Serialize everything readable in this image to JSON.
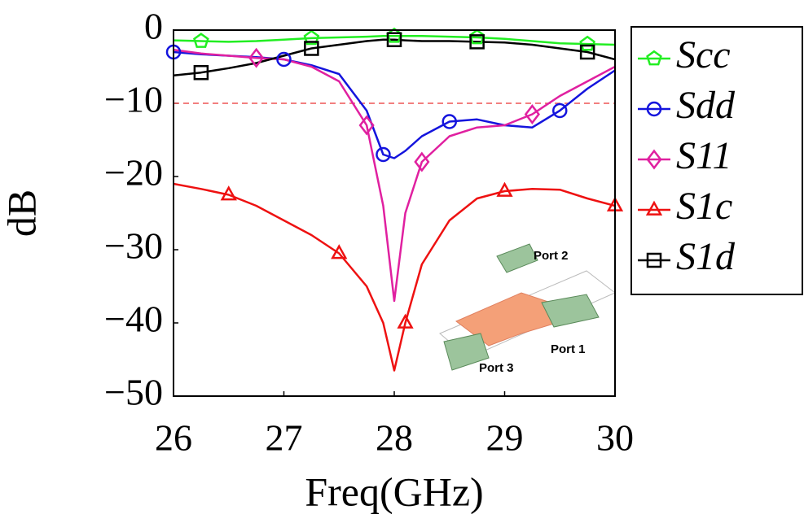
{
  "chart_data": {
    "type": "line",
    "xlabel": "Freq(GHz)",
    "ylabel": "dB",
    "xlim": [
      26,
      30
    ],
    "xticks": [
      26,
      27,
      28,
      29,
      30
    ],
    "ylim": [
      -50,
      0
    ],
    "yticks": [
      {
        "value": -50,
        "label": "−50"
      },
      {
        "value": -40,
        "label": "−40"
      },
      {
        "value": -30,
        "label": "−30"
      },
      {
        "value": -20,
        "label": "−20"
      },
      {
        "value": -10,
        "label": "−10"
      },
      0
    ],
    "reference_line": {
      "value": -10,
      "color": "#ee5555"
    },
    "legend": "outside-right",
    "x": [
      26,
      26.25,
      26.5,
      26.75,
      27,
      27.25,
      27.5,
      27.75,
      27.9,
      28,
      28.1,
      28.25,
      28.5,
      28.75,
      29,
      29.25,
      29.5,
      29.75,
      30
    ],
    "series": [
      {
        "name": "Scc",
        "color": "#22ee22",
        "marker": "pentagon",
        "values": [
          -1.4,
          -1.5,
          -1.6,
          -1.5,
          -1.3,
          -1.1,
          -1.0,
          -0.9,
          -0.8,
          -0.8,
          -0.8,
          -0.8,
          -0.9,
          -1.0,
          -1.2,
          -1.5,
          -1.8,
          -1.9,
          -2.0
        ]
      },
      {
        "name": "Sdd",
        "color": "#1414dd",
        "marker": "circle",
        "values": [
          -3,
          -3.3,
          -3.5,
          -3.7,
          -4,
          -4.8,
          -6,
          -11,
          -17,
          -17.5,
          -16.5,
          -14.5,
          -12.5,
          -12.2,
          -13,
          -13.3,
          -11,
          -8,
          -5.5
        ]
      },
      {
        "name": "S11",
        "color": "#e020a0",
        "marker": "diamond",
        "values": [
          -2.7,
          -3.2,
          -3.5,
          -3.8,
          -4,
          -5,
          -7,
          -13,
          -24,
          -37,
          -25,
          -18,
          -14.5,
          -13.3,
          -13,
          -11.5,
          -9,
          -7,
          -5
        ]
      },
      {
        "name": "S1c",
        "color": "#ee1111",
        "marker": "triangle",
        "values": [
          -21,
          -21.7,
          -22.5,
          -24,
          -26,
          -28,
          -30.5,
          -35,
          -40,
          -46.5,
          -40,
          -32,
          -26,
          -23,
          -22,
          -21.7,
          -21.8,
          -23,
          -24
        ]
      },
      {
        "name": "S1d",
        "color": "#000000",
        "marker": "square",
        "values": [
          -6.2,
          -5.8,
          -5.2,
          -4.5,
          -3.5,
          -2.5,
          -2,
          -1.5,
          -1.3,
          -1.3,
          -1.4,
          -1.5,
          -1.5,
          -1.6,
          -1.7,
          -2,
          -2.5,
          -3,
          -4
        ]
      }
    ],
    "annotations": [
      "Port 2",
      "Port 1",
      "Port 3"
    ]
  }
}
